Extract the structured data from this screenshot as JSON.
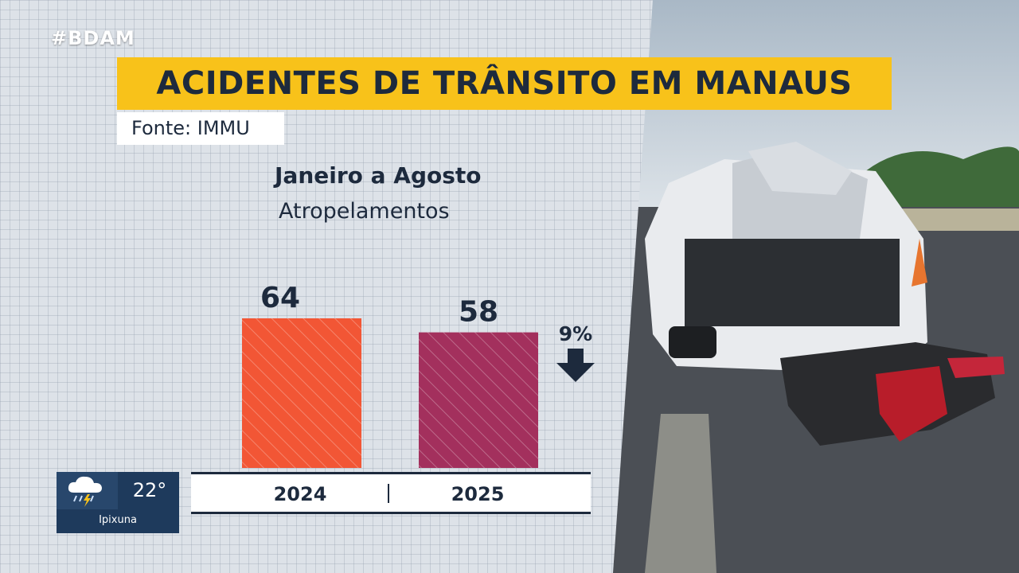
{
  "broadcast": {
    "hashtag": "#BDAM"
  },
  "header": {
    "title": "ACIDENTES DE TRÂNSITO EM MANAUS",
    "source": "Fonte: IMMU",
    "title_color": "#f8c21a"
  },
  "chart_data": {
    "type": "bar",
    "title": "ACIDENTES DE TRÂNSITO EM MANAUS",
    "subtitle": "Janeiro a Agosto",
    "category_label": "Atropelamentos",
    "categories": [
      "2024",
      "2025"
    ],
    "values": [
      64,
      58
    ],
    "value_labels": [
      "64",
      "58"
    ],
    "colors": [
      "#f25635",
      "#a3305d"
    ],
    "change_label": "9%",
    "change_direction": "down",
    "ylim": [
      0,
      64
    ],
    "grid": false,
    "legend": "none"
  },
  "weather": {
    "icon": "rain-thunder-icon",
    "temperature": "22°",
    "city": "Ipixuna"
  }
}
